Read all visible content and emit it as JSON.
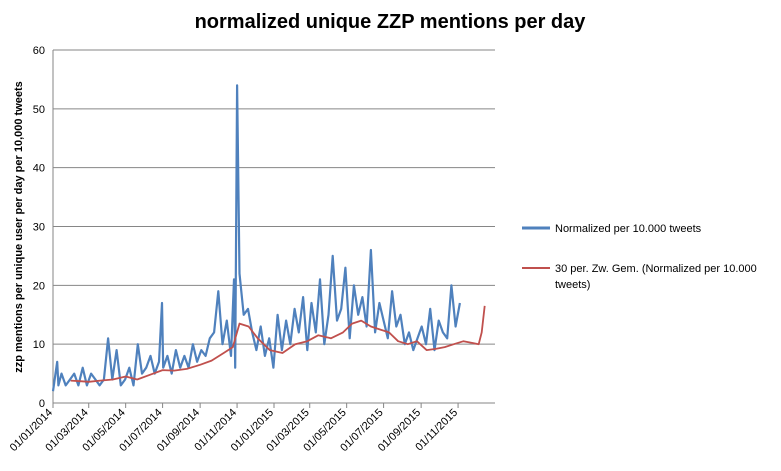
{
  "chart_data": {
    "type": "line",
    "title": "normalized unique ZZP mentions per day",
    "xlabel": "",
    "ylabel": "zzp mentions per unique user per day per 10,000 tweets",
    "ylim": [
      0,
      60
    ],
    "yticks": [
      "0",
      "10",
      "20",
      "30",
      "40",
      "50",
      "60"
    ],
    "xticks": [
      "01/01/2014",
      "01/03/2014",
      "01/05/2014",
      "01/07/2014",
      "01/09/2014",
      "01/11/2014",
      "01/01/2015",
      "01/03/2015",
      "01/05/2015",
      "01/07/2015",
      "01/09/2015",
      "01/11/2015"
    ],
    "xlim": [
      "2014-01-01",
      "2016-01-01"
    ],
    "grid": "horizontal",
    "legend_position": "right",
    "series": [
      {
        "name": "Normalized per 10.000 tweets",
        "color": "#4F81BD",
        "x": [
          "2014-01-01",
          "2014-01-08",
          "2014-01-10",
          "2014-01-15",
          "2014-01-22",
          "2014-01-29",
          "2014-02-05",
          "2014-02-12",
          "2014-02-19",
          "2014-02-26",
          "2014-03-05",
          "2014-03-12",
          "2014-03-19",
          "2014-03-26",
          "2014-04-02",
          "2014-04-09",
          "2014-04-16",
          "2014-04-23",
          "2014-04-30",
          "2014-05-07",
          "2014-05-14",
          "2014-05-21",
          "2014-05-28",
          "2014-06-04",
          "2014-06-11",
          "2014-06-18",
          "2014-06-25",
          "2014-06-30",
          "2014-07-02",
          "2014-07-09",
          "2014-07-16",
          "2014-07-23",
          "2014-07-30",
          "2014-08-06",
          "2014-08-13",
          "2014-08-20",
          "2014-08-27",
          "2014-09-03",
          "2014-09-10",
          "2014-09-17",
          "2014-09-24",
          "2014-10-01",
          "2014-10-08",
          "2014-10-15",
          "2014-10-22",
          "2014-10-27",
          "2014-10-29",
          "2014-11-01",
          "2014-11-05",
          "2014-11-12",
          "2014-11-19",
          "2014-11-26",
          "2014-12-03",
          "2014-12-10",
          "2014-12-17",
          "2014-12-24",
          "2014-12-31",
          "2015-01-07",
          "2015-01-14",
          "2015-01-21",
          "2015-01-28",
          "2015-02-04",
          "2015-02-11",
          "2015-02-18",
          "2015-02-25",
          "2015-03-04",
          "2015-03-11",
          "2015-03-18",
          "2015-03-25",
          "2015-04-01",
          "2015-04-08",
          "2015-04-15",
          "2015-04-22",
          "2015-04-29",
          "2015-05-06",
          "2015-05-13",
          "2015-05-20",
          "2015-05-27",
          "2015-06-03",
          "2015-06-10",
          "2015-06-17",
          "2015-06-24",
          "2015-07-01",
          "2015-07-08",
          "2015-07-15",
          "2015-07-22",
          "2015-07-29",
          "2015-08-05",
          "2015-08-12",
          "2015-08-19",
          "2015-08-26",
          "2015-09-02",
          "2015-09-09",
          "2015-09-16",
          "2015-09-23",
          "2015-09-30",
          "2015-10-07",
          "2015-10-14",
          "2015-10-21",
          "2015-10-28",
          "2015-11-04"
        ],
        "values": [
          2,
          7,
          3,
          5,
          3,
          4,
          5,
          3,
          6,
          3,
          5,
          4,
          3,
          4,
          11,
          4,
          9,
          3,
          4,
          6,
          3,
          10,
          5,
          6,
          8,
          5,
          7,
          17,
          6,
          8,
          5,
          9,
          6,
          8,
          6,
          10,
          7,
          9,
          8,
          11,
          12,
          19,
          10,
          14,
          8,
          21,
          6,
          54,
          22,
          15,
          16,
          12,
          9,
          13,
          8,
          11,
          6,
          15,
          9,
          14,
          10,
          16,
          12,
          18,
          9,
          17,
          12,
          21,
          10,
          15,
          25,
          14,
          16,
          23,
          11,
          20,
          15,
          18,
          13,
          26,
          12,
          17,
          14,
          11,
          19,
          13,
          15,
          10,
          12,
          9,
          11,
          13,
          10,
          16,
          9,
          14,
          12,
          11,
          20,
          13,
          17
        ]
      },
      {
        "name": "30 per. Zw. Gem. (Normalized per 10.000 tweets)",
        "color": "#C0504D",
        "x": [
          "2014-01-30",
          "2014-02-15",
          "2014-03-01",
          "2014-03-20",
          "2014-04-10",
          "2014-05-01",
          "2014-05-20",
          "2014-06-10",
          "2014-07-01",
          "2014-07-20",
          "2014-08-10",
          "2014-09-01",
          "2014-09-20",
          "2014-10-10",
          "2014-10-25",
          "2014-11-05",
          "2014-11-20",
          "2014-12-05",
          "2014-12-25",
          "2015-01-15",
          "2015-02-05",
          "2015-02-25",
          "2015-03-15",
          "2015-04-05",
          "2015-04-25",
          "2015-05-10",
          "2015-05-25",
          "2015-06-10",
          "2015-06-25",
          "2015-07-10",
          "2015-07-25",
          "2015-08-10",
          "2015-08-25",
          "2015-09-10",
          "2015-09-25",
          "2015-10-10",
          "2015-10-25",
          "2015-11-10",
          "2015-11-25",
          "2015-12-05",
          "2015-12-10",
          "2015-12-15"
        ],
        "values": [
          3.8,
          3.7,
          3.6,
          3.8,
          4.0,
          4.5,
          4.0,
          4.8,
          5.6,
          5.5,
          5.8,
          6.5,
          7.2,
          8.5,
          9.5,
          13.5,
          13.0,
          11.0,
          9.0,
          8.5,
          10.0,
          10.5,
          11.5,
          11.0,
          12.0,
          13.5,
          14.0,
          13.0,
          12.5,
          12.0,
          10.5,
          10.0,
          10.5,
          9.0,
          9.2,
          9.5,
          10.0,
          10.5,
          10.2,
          10.0,
          12.0,
          16.5
        ]
      }
    ]
  }
}
